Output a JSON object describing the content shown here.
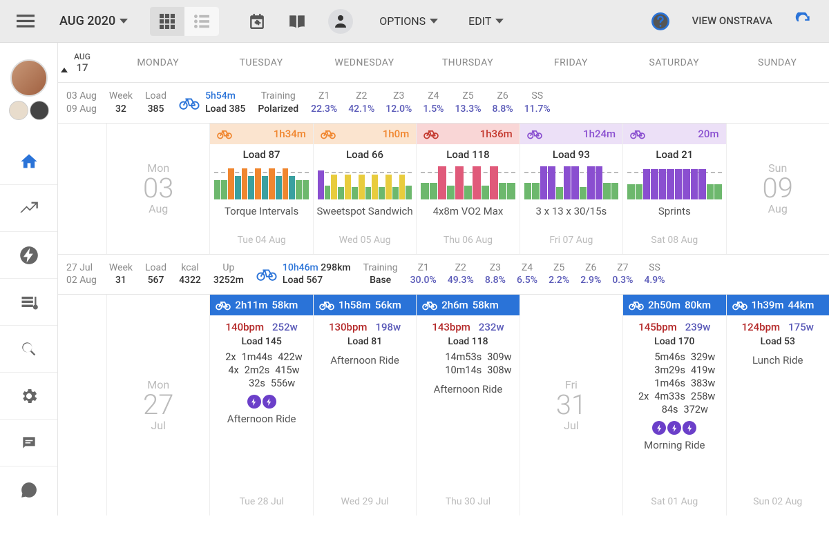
{
  "toolbar": {
    "month_label": "AUG 2020",
    "options_label": "OPTIONS",
    "edit_label": "EDIT",
    "strava_line1": "VIEW ON",
    "strava_line2": "STRAVA"
  },
  "dayheader": {
    "corner_month": "AUG",
    "corner_day": "17",
    "days": [
      "MONDAY",
      "TUESDAY",
      "WEDNESDAY",
      "THURSDAY",
      "FRIDAY",
      "SATURDAY",
      "SUNDAY"
    ]
  },
  "colors": {
    "blue": "#2a73d8",
    "purple": "#5a5ab8",
    "green_bar": "#6db86d",
    "orange": "#f0862f",
    "yellow": "#e8cc3e",
    "teal": "#3aa0a0",
    "pink": "#e05a7a",
    "violet": "#8a4fd0",
    "red_text": "#c43a2f",
    "violet_text": "#8a4fd0",
    "summary_purple": "#5a5ab8"
  },
  "week1": {
    "dates_top": "03 Aug",
    "dates_bot": "09 Aug",
    "week_lbl": "Week",
    "week_val": "32",
    "load_lbl": "Load",
    "load_val": "385",
    "bike_time": "5h54m",
    "bike_load": "Load 385",
    "training_lbl": "Training",
    "training_val": "Polarized",
    "zones": [
      {
        "lbl": "Z1",
        "val": "22.3%"
      },
      {
        "lbl": "Z2",
        "val": "42.1%"
      },
      {
        "lbl": "Z3",
        "val": "12.0%"
      },
      {
        "lbl": "Z4",
        "val": "1.5%"
      },
      {
        "lbl": "Z5",
        "val": "13.3%"
      },
      {
        "lbl": "Z6",
        "val": "8.8%"
      },
      {
        "lbl": "SS",
        "val": "11.7%"
      }
    ],
    "mon": {
      "wd": "Mon",
      "dn": "03",
      "mn": "Aug"
    },
    "sun": {
      "wd": "Sun",
      "dn": "09",
      "mn": "Aug"
    },
    "cards": [
      {
        "time": "1h34m",
        "load": "Load 87",
        "name": "Torque Intervals",
        "date": "Tue 04 Aug",
        "head_bg": "#fbe4cf",
        "accent": "#f0862f",
        "bars": [
          [
            "#6db86d",
            28
          ],
          [
            "#6db86d",
            28
          ],
          [
            "#f0862f",
            45
          ],
          [
            "#3aa0a0",
            34
          ],
          [
            "#f0862f",
            45
          ],
          [
            "#3aa0a0",
            34
          ],
          [
            "#f0862f",
            45
          ],
          [
            "#3aa0a0",
            34
          ],
          [
            "#f0862f",
            45
          ],
          [
            "#3aa0a0",
            34
          ],
          [
            "#f0862f",
            45
          ],
          [
            "#3aa0a0",
            34
          ],
          [
            "#6db86d",
            28
          ],
          [
            "#6db86d",
            28
          ]
        ]
      },
      {
        "time": "1h0m",
        "load": "Load 66",
        "name": "Sweetspot Sandwich",
        "date": "Wed 05 Aug",
        "head_bg": "#fbe4cf",
        "accent": "#f0862f",
        "bars": [
          [
            "#8a4fd0",
            42
          ],
          [
            "#6db86d",
            20
          ],
          [
            "#e8cc3e",
            36
          ],
          [
            "#6db86d",
            18
          ],
          [
            "#e8cc3e",
            36
          ],
          [
            "#6db86d",
            18
          ],
          [
            "#e8cc3e",
            36
          ],
          [
            "#6db86d",
            18
          ],
          [
            "#e8cc3e",
            36
          ],
          [
            "#6db86d",
            18
          ],
          [
            "#e8cc3e",
            36
          ],
          [
            "#6db86d",
            18
          ],
          [
            "#e8cc3e",
            36
          ],
          [
            "#6db86d",
            20
          ]
        ]
      },
      {
        "time": "1h36m",
        "load": "Load 118",
        "name": "4x8m VO2 Max",
        "date": "Thu 06 Aug",
        "head_bg": "#f9d6d6",
        "accent": "#c43a2f",
        "bars": [
          [
            "#6db86d",
            24
          ],
          [
            "#6db86d",
            24
          ],
          [
            "#e05a7a",
            48
          ],
          [
            "#6db86d",
            20
          ],
          [
            "#e05a7a",
            48
          ],
          [
            "#6db86d",
            20
          ],
          [
            "#e05a7a",
            48
          ],
          [
            "#6db86d",
            20
          ],
          [
            "#e05a7a",
            48
          ],
          [
            "#6db86d",
            24
          ],
          [
            "#6db86d",
            24
          ]
        ]
      },
      {
        "time": "1h24m",
        "load": "Load 93",
        "name": "3 x 13 x 30/15s",
        "date": "Fri 07 Aug",
        "head_bg": "#ece0f7",
        "accent": "#8a4fd0",
        "bars": [
          [
            "#6db86d",
            24
          ],
          [
            "#6db86d",
            24
          ],
          [
            "#8a4fd0",
            48
          ],
          [
            "#8a4fd0",
            48
          ],
          [
            "#6db86d",
            18
          ],
          [
            "#8a4fd0",
            48
          ],
          [
            "#8a4fd0",
            48
          ],
          [
            "#6db86d",
            18
          ],
          [
            "#8a4fd0",
            48
          ],
          [
            "#8a4fd0",
            48
          ],
          [
            "#6db86d",
            24
          ],
          [
            "#6db86d",
            24
          ]
        ]
      },
      {
        "time": "20m",
        "load": "Load 21",
        "name": "Sprints",
        "date": "Sat 08 Aug",
        "head_bg": "#ece0f7",
        "accent": "#8a4fd0",
        "bars": [
          [
            "#6db86d",
            22
          ],
          [
            "#6db86d",
            22
          ],
          [
            "#8a4fd0",
            44
          ],
          [
            "#8a4fd0",
            44
          ],
          [
            "#8a4fd0",
            44
          ],
          [
            "#8a4fd0",
            44
          ],
          [
            "#8a4fd0",
            44
          ],
          [
            "#8a4fd0",
            44
          ],
          [
            "#8a4fd0",
            44
          ],
          [
            "#8a4fd0",
            44
          ],
          [
            "#6db86d",
            22
          ],
          [
            "#6db86d",
            22
          ]
        ]
      }
    ]
  },
  "week2": {
    "dates_top": "27 Jul",
    "dates_bot": "02 Aug",
    "week_lbl": "Week",
    "week_val": "31",
    "load_lbl": "Load",
    "load_val": "567",
    "kcal_lbl": "kcal",
    "kcal_val": "4322",
    "up_lbl": "Up",
    "up_val": "3252m",
    "bike_time": "10h46m",
    "bike_dist": "298km",
    "bike_load": "Load 567",
    "training_lbl": "Training",
    "training_val": "Base",
    "zones": [
      {
        "lbl": "Z1",
        "val": "30.0%"
      },
      {
        "lbl": "Z2",
        "val": "49.3%"
      },
      {
        "lbl": "Z3",
        "val": "8.8%"
      },
      {
        "lbl": "Z4",
        "val": "6.5%"
      },
      {
        "lbl": "Z5",
        "val": "2.2%"
      },
      {
        "lbl": "Z6",
        "val": "2.9%"
      },
      {
        "lbl": "Z7",
        "val": "0.3%"
      },
      {
        "lbl": "SS",
        "val": "4.9%"
      }
    ],
    "mon": {
      "wd": "Mon",
      "dn": "27",
      "mn": "Jul"
    },
    "fri": {
      "wd": "Fri",
      "dn": "31",
      "mn": "Jul"
    },
    "cards": [
      {
        "day": "tue",
        "time": "2h11m",
        "dist": "58km",
        "bpm": "140bpm",
        "w": "252w",
        "load": "Load 145",
        "ints": [
          [
            "2x",
            "1m44s",
            "422w"
          ],
          [
            "4x",
            "2m2s",
            "415w"
          ],
          [
            "",
            "32s",
            "556w"
          ]
        ],
        "bolts": 2,
        "name": "Afternoon Ride",
        "date": "Tue 28 Jul"
      },
      {
        "day": "wed",
        "time": "1h58m",
        "dist": "56km",
        "bpm": "130bpm",
        "w": "198w",
        "load": "Load 81",
        "ints": [],
        "bolts": 0,
        "name": "Afternoon Ride",
        "date": "Wed 29 Jul"
      },
      {
        "day": "thu",
        "time": "2h6m",
        "dist": "58km",
        "bpm": "143bpm",
        "w": "232w",
        "load": "Load 118",
        "ints": [
          [
            "",
            "14m53s",
            "309w"
          ],
          [
            "",
            "10m14s",
            "308w"
          ]
        ],
        "bolts": 0,
        "name": "Afternoon Ride",
        "date": "Thu 30 Jul"
      },
      {
        "day": "sat",
        "time": "2h50m",
        "dist": "80km",
        "bpm": "145bpm",
        "w": "239w",
        "load": "Load 170",
        "ints": [
          [
            "",
            "5m46s",
            "329w"
          ],
          [
            "",
            "3m29s",
            "419w"
          ],
          [
            "",
            "1m46s",
            "383w"
          ],
          [
            "2x",
            "4m33s",
            "258w"
          ],
          [
            "",
            "84s",
            "372w"
          ]
        ],
        "bolts": 3,
        "name": "Morning Ride",
        "date": "Sat 01 Aug"
      },
      {
        "day": "sun",
        "time": "1h39m",
        "dist": "44km",
        "bpm": "124bpm",
        "w": "175w",
        "load": "Load 53",
        "ints": [],
        "bolts": 0,
        "name": "Lunch Ride",
        "date": "Sun 02 Aug"
      }
    ]
  }
}
